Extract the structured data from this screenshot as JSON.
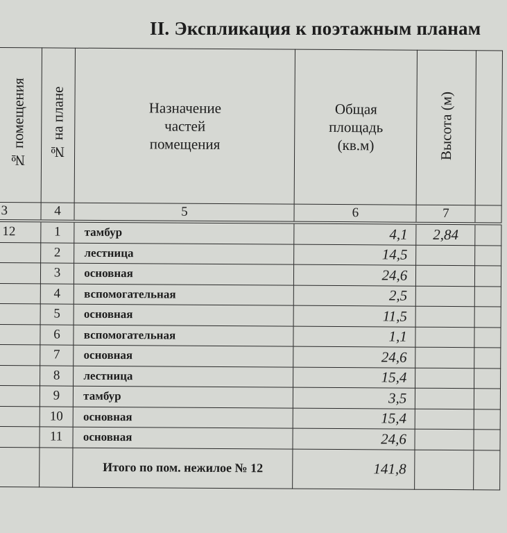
{
  "title": "II. Экспликация к поэтажным планам",
  "headers": {
    "col3": "№ помещения",
    "col4": "№ на плане",
    "col5": [
      "Назначение",
      "частей",
      "помещения"
    ],
    "col6": [
      "Общая",
      "площадь",
      "(кв.м)"
    ],
    "col7": "Высота (м)"
  },
  "column_numbers": [
    "3",
    "4",
    "5",
    "6",
    "7"
  ],
  "rows": [
    {
      "room": "12",
      "num": "1",
      "purpose": "тамбур",
      "area": "4,1",
      "height": "2,84"
    },
    {
      "room": "",
      "num": "2",
      "purpose": "лестница",
      "area": "14,5",
      "height": ""
    },
    {
      "room": "",
      "num": "3",
      "purpose": "основная",
      "area": "24,6",
      "height": ""
    },
    {
      "room": "",
      "num": "4",
      "purpose": "вспомогательная",
      "area": "2,5",
      "height": ""
    },
    {
      "room": "",
      "num": "5",
      "purpose": "основная",
      "area": "11,5",
      "height": ""
    },
    {
      "room": "",
      "num": "6",
      "purpose": "вспомогательная",
      "area": "1,1",
      "height": ""
    },
    {
      "room": "",
      "num": "7",
      "purpose": "основная",
      "area": "24,6",
      "height": ""
    },
    {
      "room": "",
      "num": "8",
      "purpose": "лестница",
      "area": "15,4",
      "height": ""
    },
    {
      "room": "",
      "num": "9",
      "purpose": "тамбур",
      "area": "3,5",
      "height": ""
    },
    {
      "room": "",
      "num": "10",
      "purpose": "основная",
      "area": "15,4",
      "height": ""
    },
    {
      "room": "",
      "num": "11",
      "purpose": "основная",
      "area": "24,6",
      "height": ""
    }
  ],
  "total": {
    "label": "Итого по пом. нежилое № 12",
    "area": "141,8"
  }
}
